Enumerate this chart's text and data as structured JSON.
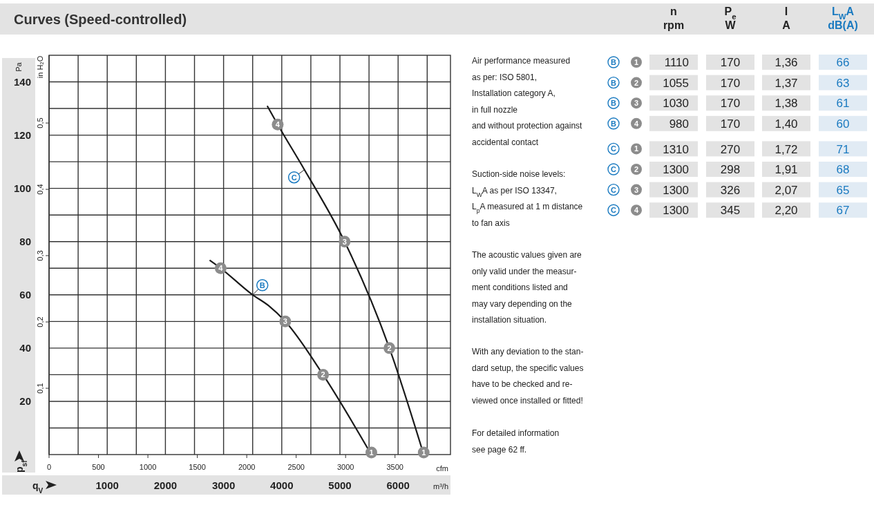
{
  "chart_data": [
    {
      "type": "line",
      "title": "Curves (Speed-controlled)",
      "xlabel": "m³/h",
      "x2label": "cfm",
      "ylabel": "Pa",
      "y2label": "in H₂O",
      "xlim": [
        0,
        6900
      ],
      "xticks": [
        {
          "value": 0,
          "label": null
        },
        {
          "value": 500,
          "label": null
        },
        1000,
        {
          "value": 1500,
          "label": null
        },
        2000,
        {
          "value": 2500,
          "label": null
        },
        3000,
        {
          "value": 3500,
          "label": null
        },
        4000,
        {
          "value": 4500,
          "label": null
        },
        5000,
        {
          "value": 5500,
          "label": null
        },
        6000,
        {
          "value": 6500,
          "label": null
        }
      ],
      "x2lim": [
        0,
        4061
      ],
      "x2ticks": [
        0,
        500,
        1000,
        1500,
        2000,
        2500,
        3000,
        3500
      ],
      "ylim": [
        0,
        150
      ],
      "yticks": [
        {
          "value": 10,
          "label": null
        },
        20,
        {
          "value": 30,
          "label": null
        },
        40,
        {
          "value": 50,
          "label": null
        },
        60,
        {
          "value": 70,
          "label": null
        },
        80,
        {
          "value": 90,
          "label": null
        },
        100,
        {
          "value": 110,
          "label": null
        },
        120,
        {
          "value": 130,
          "label": null
        },
        140
      ],
      "y2lim": [
        0,
        0.6022
      ],
      "y2ticks": [
        {
          "value": 0.1,
          "label": "0,1"
        },
        {
          "value": 0.2,
          "label": "0,2"
        },
        {
          "value": 0.3,
          "label": "0,3"
        },
        {
          "value": 0.4,
          "label": "0,4"
        },
        {
          "value": 0.5,
          "label": "0,5"
        }
      ],
      "grid": true,
      "series": [
        {
          "name": "B",
          "color": "#1a1a1a",
          "x": [
            2760,
            2950,
            3500,
            3770,
            4060,
            4710,
            5540
          ],
          "values": [
            73,
            70,
            60,
            56,
            50,
            30,
            0
          ]
        },
        {
          "name": "C",
          "color": "#1a1a1a",
          "x": [
            3750,
            3930,
            4390,
            5080,
            5850,
            6440
          ],
          "values": [
            131,
            124,
            107,
            80,
            40,
            0
          ]
        }
      ],
      "annotations": [
        {
          "text": "4",
          "x": 2950,
          "y": 70
        },
        {
          "text": "3",
          "x": 4060,
          "y": 50
        },
        {
          "text": "2",
          "x": 4710,
          "y": 30
        },
        {
          "text": "1",
          "x": 5540,
          "y": 0
        },
        {
          "text": "4",
          "x": 3930,
          "y": 124
        },
        {
          "text": "3",
          "x": 5080,
          "y": 80
        },
        {
          "text": "2",
          "x": 5850,
          "y": 40
        },
        {
          "text": "1",
          "x": 6440,
          "y": 0
        },
        "p$_{sf}$",
        "q$_{V}$"
      ]
    },
    {
      "type": "other",
      "annotations": [
        "Air performance measured\nas per: ISO 5801,\nInstallation category A,\nin full nozzle\nand without protection against\naccidental contact",
        "Suction-side noise levels:\nL$_{W}$A as per ISO 13347,\nL$_{p}$A measured at 1 m distance\nto fan axis",
        "The acoustic values given are\nonly valid under the measur-\nment conditions listed and\nmay vary depending on the\ninstallation situation.",
        "With any deviation to the stan-\ndard setup, the specific values\nhave to be checked and re-\nviewed once installed or fitted!",
        "For detailed information\nsee page 62 ff."
      ]
    },
    {
      "type": "other",
      "annotations": [
        "n\nrpm",
        "P$_{e}$\nW",
        "I\nA",
        "L$_{W}$A\ndB(A)",
        "B",
        "1",
        "1110",
        "170",
        "1,36",
        "66",
        "B",
        "2",
        "1055",
        "170",
        "1,37",
        "63",
        "B",
        "3",
        "1030",
        "170",
        "1,38",
        "61",
        "B",
        "4",
        "980",
        "170",
        "1,40",
        "60",
        "C",
        "1",
        "1310",
        "270",
        "1,72",
        "71",
        "C",
        "2",
        "1300",
        "298",
        "1,91",
        "68",
        "C",
        "3",
        "1300",
        "326",
        "2,07",
        "65",
        "C",
        "4",
        "1300",
        "345",
        "2,20",
        "67"
      ]
    }
  ]
}
